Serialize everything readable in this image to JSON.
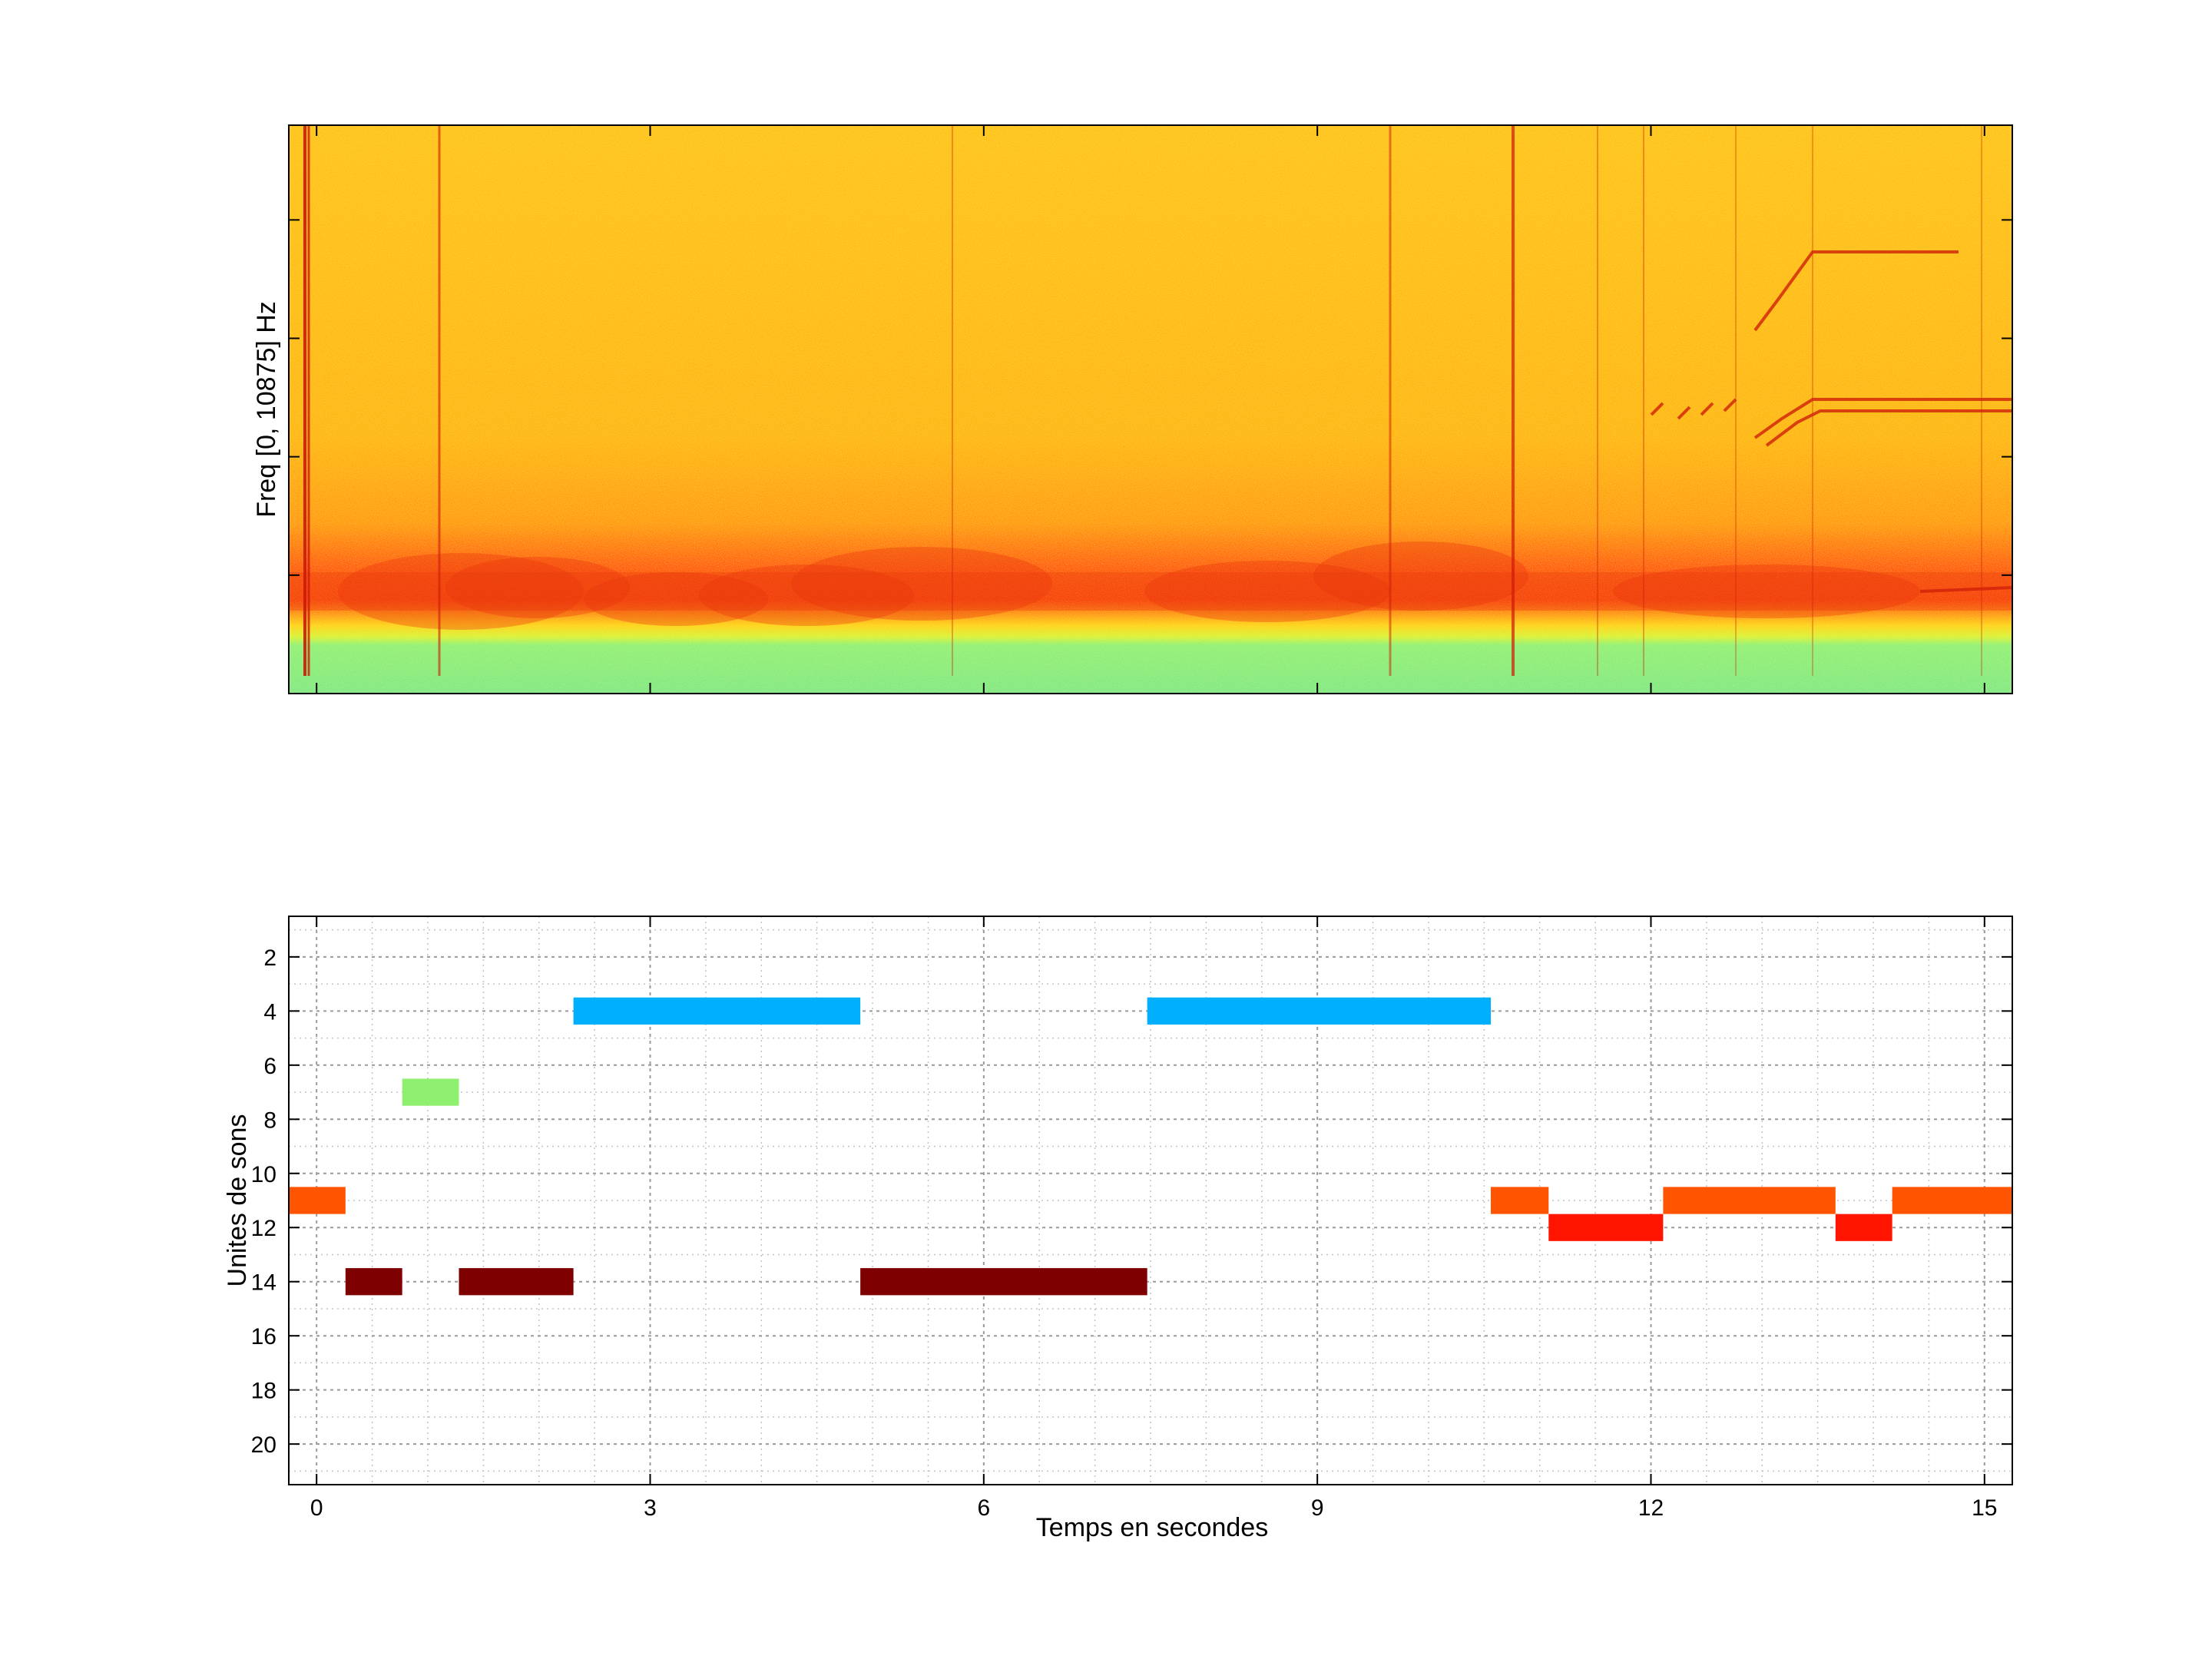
{
  "chart_data": [
    {
      "type": "heatmap",
      "title": "",
      "xlabel": "",
      "ylabel": "Freq [0, 10875] Hz",
      "colormap": [
        "#3ad6c0",
        "#8ef07a",
        "#ffff2e",
        "#ffcf16",
        "#ff9d10",
        "#ff4a0e",
        "#d51808"
      ],
      "features": [
        {
          "name": "noise floor band",
          "intensity": "low"
        },
        {
          "name": "low-frequency energy band",
          "intensity": "high"
        },
        {
          "name": "broadband transients",
          "intensity": "high"
        },
        {
          "name": "tonal harmonics",
          "intensity": "high"
        }
      ]
    },
    {
      "type": "bar",
      "subtype": "horizontal-segments",
      "title": "",
      "xlabel": "Temps en secondes",
      "ylabel": "Unites de sons",
      "xlim": [
        -0.25,
        15.25
      ],
      "ylim": [
        21.5,
        0.5
      ],
      "y_inverted": true,
      "xticks": [
        "0",
        "3",
        "6",
        "9",
        "12",
        "15"
      ],
      "yticks": [
        "2",
        "4",
        "6",
        "8",
        "10",
        "12",
        "14",
        "16",
        "18",
        "20"
      ],
      "grid": true,
      "segments": [
        {
          "unit": 11,
          "start": -0.25,
          "end": 0.26,
          "color": "#ff5500"
        },
        {
          "unit": 14,
          "start": 0.26,
          "end": 0.77,
          "color": "#7f0000"
        },
        {
          "unit": 7,
          "start": 0.77,
          "end": 1.28,
          "color": "#8ff06f"
        },
        {
          "unit": 14,
          "start": 1.28,
          "end": 2.31,
          "color": "#7f0000"
        },
        {
          "unit": 4,
          "start": 2.31,
          "end": 4.89,
          "color": "#00b0ff"
        },
        {
          "unit": 14,
          "start": 4.89,
          "end": 7.47,
          "color": "#7f0000"
        },
        {
          "unit": 4,
          "start": 7.47,
          "end": 10.56,
          "color": "#00b0ff"
        },
        {
          "unit": 11,
          "start": 10.56,
          "end": 11.08,
          "color": "#ff5500"
        },
        {
          "unit": 12,
          "start": 11.08,
          "end": 12.11,
          "color": "#ff1500"
        },
        {
          "unit": 11,
          "start": 12.11,
          "end": 13.66,
          "color": "#ff5500"
        },
        {
          "unit": 12,
          "start": 13.66,
          "end": 14.17,
          "color": "#ff1500"
        },
        {
          "unit": 11,
          "start": 14.17,
          "end": 15.25,
          "color": "#ff5500"
        }
      ]
    }
  ]
}
